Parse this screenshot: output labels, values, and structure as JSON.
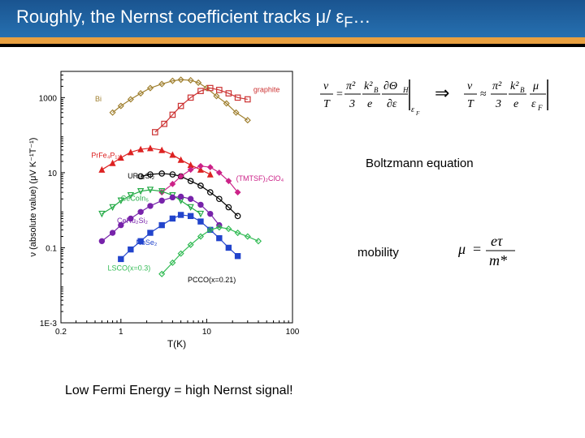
{
  "title": "Roughly, the Nernst coefficient  tracks μ/ ε",
  "title_sub": "F",
  "title_tail": "…",
  "boltzmann_label": "Boltzmann equation",
  "mobility_label": "mobility",
  "bottom_statement": "Low Fermi Energy = high Nernst signal!",
  "chart": {
    "type": "log-log-scatter",
    "xlabel": "T(K)",
    "ylabel": "ν (absolute value) (μV K⁻¹T⁻¹)",
    "xlim": [
      0.2,
      100
    ],
    "ylim": [
      0.001,
      5000
    ],
    "xticks": [
      1,
      10,
      100
    ],
    "xtick_minor_left": "0.2",
    "yticks": [
      0.001,
      0.1,
      10,
      1000
    ],
    "ytick_labels": [
      "1E-3",
      "0.1",
      "10",
      "1000"
    ],
    "background_color": "#ffffff",
    "axis_color": "#000000",
    "series": [
      {
        "name": "Bi",
        "label": "Bi",
        "color": "#a08030",
        "marker": "diamond-open",
        "label_pos": [
          0.5,
          800
        ],
        "data": [
          [
            0.8,
            400
          ],
          [
            1.0,
            600
          ],
          [
            1.3,
            900
          ],
          [
            1.7,
            1300
          ],
          [
            2.2,
            1800
          ],
          [
            3,
            2300
          ],
          [
            4,
            2800
          ],
          [
            5,
            3000
          ],
          [
            6.5,
            2900
          ],
          [
            8,
            2500
          ],
          [
            10,
            1800
          ],
          [
            13,
            1100
          ],
          [
            17,
            700
          ],
          [
            22,
            400
          ],
          [
            30,
            250
          ]
        ]
      },
      {
        "name": "graphite",
        "label": "graphite",
        "color": "#cc3333",
        "marker": "square-open",
        "label_pos": [
          35,
          1400
        ],
        "data": [
          [
            2.5,
            120
          ],
          [
            3.2,
            200
          ],
          [
            4,
            350
          ],
          [
            5,
            600
          ],
          [
            6.5,
            1000
          ],
          [
            8.5,
            1500
          ],
          [
            11,
            1800
          ],
          [
            14,
            1600
          ],
          [
            18,
            1300
          ],
          [
            23,
            1000
          ],
          [
            30,
            900
          ]
        ]
      },
      {
        "name": "PrFe4P12",
        "label": "PrFe₄P₁₂",
        "color": "#dd2222",
        "marker": "triangle-filled",
        "label_pos": [
          0.45,
          25
        ],
        "data": [
          [
            0.6,
            12
          ],
          [
            0.8,
            18
          ],
          [
            1.0,
            25
          ],
          [
            1.3,
            35
          ],
          [
            1.7,
            42
          ],
          [
            2.2,
            45
          ],
          [
            3,
            40
          ],
          [
            4,
            30
          ],
          [
            5,
            22
          ],
          [
            6.5,
            16
          ],
          [
            8.5,
            12
          ],
          [
            11,
            9
          ]
        ]
      },
      {
        "name": "URu2Si2",
        "label": "URu₂Si₂",
        "color": "#000000",
        "marker": "circle-open",
        "label_pos": [
          1.2,
          7
        ],
        "data": [
          [
            1.7,
            8
          ],
          [
            2.2,
            9
          ],
          [
            3,
            9.5
          ],
          [
            4,
            9
          ],
          [
            5,
            8
          ],
          [
            6.5,
            6
          ],
          [
            8.5,
            4.5
          ],
          [
            11,
            3
          ],
          [
            14,
            2
          ],
          [
            18,
            1.2
          ],
          [
            23,
            0.7
          ]
        ]
      },
      {
        "name": "TMTSF",
        "label": "(TMTSF)₂ClO₄",
        "color": "#cc2288",
        "marker": "diamond-filled",
        "label_pos": [
          22,
          6
        ],
        "data": [
          [
            3,
            3
          ],
          [
            4,
            5
          ],
          [
            5,
            8
          ],
          [
            6.5,
            12
          ],
          [
            8.5,
            15
          ],
          [
            11,
            14
          ],
          [
            14,
            10
          ],
          [
            18,
            6
          ],
          [
            23,
            3
          ]
        ]
      },
      {
        "name": "CeCoIn5",
        "label": "CeCoIn₅",
        "color": "#22aa44",
        "marker": "triangle-open-down",
        "label_pos": [
          1.0,
          1.8
        ],
        "data": [
          [
            0.6,
            0.8
          ],
          [
            0.8,
            1.2
          ],
          [
            1.0,
            1.8
          ],
          [
            1.3,
            2.5
          ],
          [
            1.7,
            3.2
          ],
          [
            2.2,
            3.5
          ],
          [
            3,
            3.2
          ],
          [
            4,
            2.5
          ],
          [
            5,
            1.8
          ],
          [
            6.5,
            1.2
          ],
          [
            8.5,
            0.8
          ]
        ]
      },
      {
        "name": "CeRu2Si2",
        "label": "CeRu₂Si₂",
        "color": "#7722aa",
        "marker": "circle-filled",
        "label_pos": [
          0.9,
          0.45
        ],
        "data": [
          [
            0.6,
            0.15
          ],
          [
            0.8,
            0.25
          ],
          [
            1.0,
            0.4
          ],
          [
            1.3,
            0.6
          ],
          [
            1.7,
            0.9
          ],
          [
            2.2,
            1.3
          ],
          [
            3,
            1.8
          ],
          [
            4,
            2.2
          ],
          [
            5,
            2.3
          ],
          [
            6.5,
            2.0
          ],
          [
            8.5,
            1.4
          ],
          [
            11,
            0.8
          ],
          [
            14,
            0.4
          ]
        ]
      },
      {
        "name": "NbSe2",
        "label": "NbSe₂",
        "color": "#2244cc",
        "marker": "square-filled",
        "label_pos": [
          1.5,
          0.12
        ],
        "data": [
          [
            1.0,
            0.05
          ],
          [
            1.3,
            0.09
          ],
          [
            1.7,
            0.15
          ],
          [
            2.2,
            0.25
          ],
          [
            3,
            0.4
          ],
          [
            4,
            0.6
          ],
          [
            5,
            0.75
          ],
          [
            6.5,
            0.7
          ],
          [
            8.5,
            0.5
          ],
          [
            11,
            0.3
          ],
          [
            14,
            0.18
          ],
          [
            18,
            0.1
          ],
          [
            23,
            0.06
          ]
        ]
      },
      {
        "name": "LSCO",
        "label": "LSCO(x=0.3)",
        "color": "#33bb55",
        "marker": "diamond-open",
        "label_pos": [
          0.7,
          0.025
        ],
        "data": [
          [
            3,
            0.02
          ],
          [
            4,
            0.04
          ],
          [
            5,
            0.07
          ],
          [
            6.5,
            0.12
          ],
          [
            8.5,
            0.2
          ],
          [
            11,
            0.3
          ],
          [
            14,
            0.35
          ],
          [
            18,
            0.32
          ],
          [
            23,
            0.25
          ],
          [
            30,
            0.2
          ],
          [
            40,
            0.15
          ]
        ]
      },
      {
        "name": "PCCO",
        "label": "PCCO(x=0.21)",
        "color": "#000000",
        "marker": "none",
        "label_pos": [
          6,
          0.012
        ],
        "data": []
      }
    ]
  },
  "equations": {
    "left": {
      "lhs_num": "ν",
      "lhs_den": "T",
      "eq": "=",
      "frac1_num": "π²",
      "frac1_den": "3",
      "frac2_num": "k²",
      "frac2_num_sub": "B",
      "frac2_den": "e",
      "partial_num": "∂Θ",
      "partial_num_sub": "H",
      "partial_den": "∂ε",
      "bar_sub": "ε",
      "bar_subsub": "F"
    },
    "arrow": "⇒",
    "right": {
      "lhs_num": "ν",
      "lhs_den": "T",
      "approx": "≈",
      "frac1_num": "π²",
      "frac1_den": "3",
      "frac2_num": "k²",
      "frac2_num_sub": "B",
      "frac2_den": "e",
      "frac3_num": "μ",
      "frac3_den": "ε",
      "frac3_den_sub": "F"
    },
    "mobility": {
      "lhs": "μ",
      "eq": "=",
      "num": "eτ",
      "den": "m*"
    }
  },
  "colors": {
    "title_bg_top": "#1a5490",
    "title_bg_bot": "#2670b0",
    "orange": "#e8a040",
    "title_text": "#ffffff"
  }
}
